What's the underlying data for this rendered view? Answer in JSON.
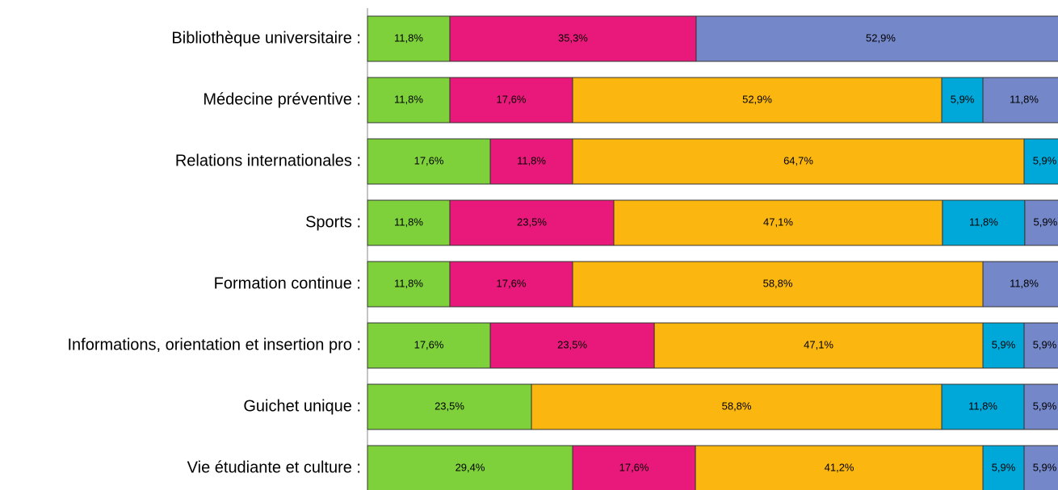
{
  "chart_data": {
    "type": "stacked_bar_horizontal",
    "categories": [
      "Bibliothèque universitaire :",
      "Médecine préventive :",
      "Relations internationales :",
      "Sports :",
      "Formation continue :",
      "Informations, orientation et insertion pro :",
      "Guichet unique :",
      "Vie étudiante et culture :"
    ],
    "xlim": [
      0,
      100
    ],
    "series": [
      {
        "color": "#7ed13b",
        "values": [
          11.8,
          11.8,
          17.6,
          11.8,
          11.8,
          17.6,
          23.5,
          29.4
        ],
        "value_labels": [
          "11,8%",
          "11,8%",
          "17,6%",
          "11,8%",
          "11,8%",
          "17,6%",
          "23,5%",
          "29,4%"
        ]
      },
      {
        "color": "#e8197a",
        "values": [
          35.3,
          17.6,
          11.8,
          23.5,
          17.6,
          23.5,
          null,
          17.6
        ],
        "value_labels": [
          "35,3%",
          "17,6%",
          "11,8%",
          "23,5%",
          "17,6%",
          "23,5%",
          null,
          "17,6%"
        ]
      },
      {
        "color": "#fbb70f",
        "values": [
          null,
          52.9,
          64.7,
          47.1,
          58.8,
          47.1,
          58.8,
          41.2
        ],
        "value_labels": [
          null,
          "52,9%",
          "64,7%",
          "47,1%",
          "58,8%",
          "47,1%",
          "58,8%",
          "41,2%"
        ]
      },
      {
        "color": "#00a8d9",
        "values": [
          null,
          5.9,
          5.9,
          11.8,
          null,
          5.9,
          11.8,
          5.9
        ],
        "value_labels": [
          null,
          "5,9%",
          "5,9%",
          "11,8%",
          null,
          "5,9%",
          "11,8%",
          "5,9%"
        ]
      },
      {
        "color": "#7487c8",
        "values": [
          52.9,
          11.8,
          null,
          5.9,
          11.8,
          5.9,
          5.9,
          5.9
        ],
        "value_labels": [
          "52,9%",
          "11,8%",
          null,
          "5,9%",
          "11,8%",
          "5,9%",
          "5,9%",
          "5,9%"
        ]
      }
    ]
  }
}
